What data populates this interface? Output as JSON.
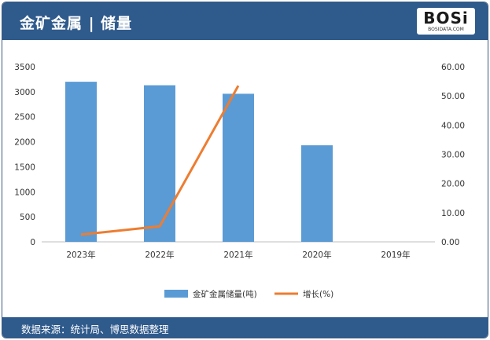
{
  "header": {
    "title": "金矿金属 | 储量"
  },
  "logo": {
    "text": "BOSi",
    "sub": "BOSIDATA.COM"
  },
  "footer": {
    "source": "数据来源：统计局、博思数据整理"
  },
  "colors": {
    "header_bg": "#2f5a8c",
    "bar": "#5b9bd5",
    "line": "#ed7d31"
  },
  "chart_data": {
    "type": "bar",
    "categories": [
      "2023年",
      "2022年",
      "2021年",
      "2020年",
      "2019年"
    ],
    "series": [
      {
        "name": "金矿金属储量(吨)",
        "type": "bar",
        "axis": "left",
        "values": [
          3200,
          3130,
          2960,
          1930,
          null
        ]
      },
      {
        "name": "增长(%)",
        "type": "line",
        "axis": "right",
        "values": [
          2.5,
          5.3,
          53.5,
          null,
          null
        ]
      }
    ],
    "y_left": {
      "min": 0,
      "max": 3500,
      "ticks": [
        "0",
        "500",
        "1000",
        "1500",
        "2000",
        "2500",
        "3000",
        "3500"
      ]
    },
    "y_right": {
      "min": 0,
      "max": 60,
      "ticks": [
        "0.00",
        "10.00",
        "20.00",
        "30.00",
        "40.00",
        "50.00",
        "60.00"
      ]
    },
    "legend": "bottom"
  }
}
